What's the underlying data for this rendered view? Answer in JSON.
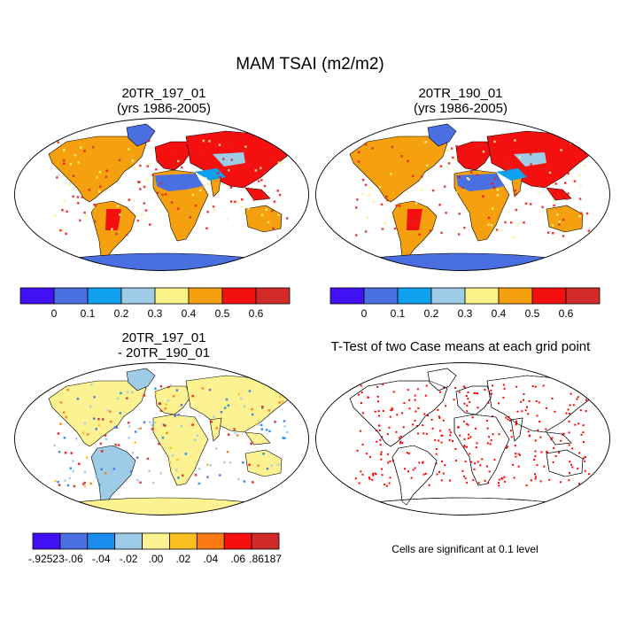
{
  "title": "MAM TSAI (m2/m2)",
  "colors": {
    "ocean": "#ffffff",
    "outline": "#000000",
    "scale_mean": [
      "#4210f5",
      "#4a6fe0",
      "#0fa0ef",
      "#9ecbe6",
      "#faf189",
      "#f5a10f",
      "#f51010",
      "#d12a28"
    ],
    "scale_diff": [
      "#4210f5",
      "#4a6fe0",
      "#1a8cee",
      "#9ecbe6",
      "#fdf291",
      "#fac020",
      "#fb7a14",
      "#f50f0f",
      "#d02a28"
    ],
    "significant": "#ff0000"
  },
  "panels": [
    {
      "id": "case1",
      "title_lines": [
        "20TR_197_01",
        "(yrs 1986-2005)"
      ],
      "colorbar_labels": [
        "0",
        "0.1",
        "0.2",
        "0.3",
        "0.4",
        "0.5",
        "0.6"
      ]
    },
    {
      "id": "case2",
      "title_lines": [
        "20TR_190_01",
        "(yrs 1986-2005)"
      ],
      "colorbar_labels": [
        "0",
        "0.1",
        "0.2",
        "0.3",
        "0.4",
        "0.5",
        "0.6"
      ]
    },
    {
      "id": "difference",
      "title_lines": [
        "20TR_197_01",
        "- 20TR_190_01"
      ],
      "colorbar_labels": [
        "-.92523",
        "-.06",
        "-.04",
        "-.02",
        ".00",
        ".02",
        ".04",
        ".06",
        ".86187"
      ]
    },
    {
      "id": "ttest",
      "title_lines": [
        "T-Test of two Case means at each grid point"
      ],
      "note": "Cells are significant at 0.1 level"
    }
  ]
}
